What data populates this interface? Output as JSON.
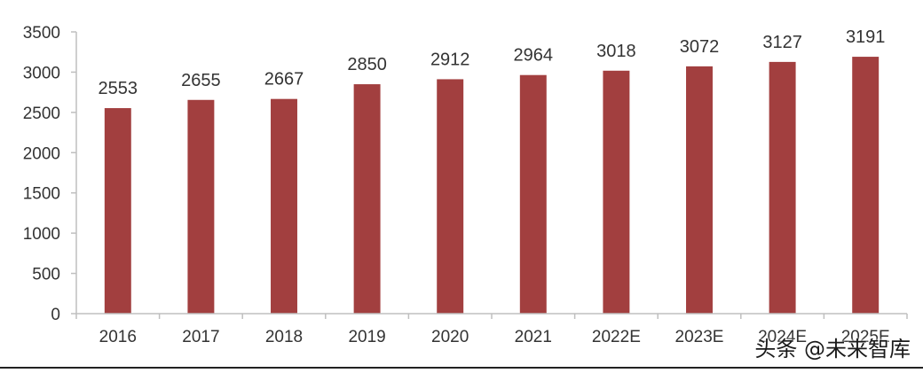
{
  "chart_data": {
    "type": "bar",
    "categories": [
      "2016",
      "2017",
      "2018",
      "2019",
      "2020",
      "2021",
      "2022E",
      "2023E",
      "2024E",
      "2025E"
    ],
    "values": [
      2553,
      2655,
      2667,
      2850,
      2912,
      2964,
      3018,
      3072,
      3127,
      3191
    ],
    "ylim": [
      0,
      3500
    ],
    "yticks": [
      0,
      500,
      1000,
      1500,
      2000,
      2500,
      3000,
      3500
    ],
    "grid": false,
    "legend": "none",
    "bar_color": "#a23f3f"
  },
  "watermark": "头条 @未来智库"
}
